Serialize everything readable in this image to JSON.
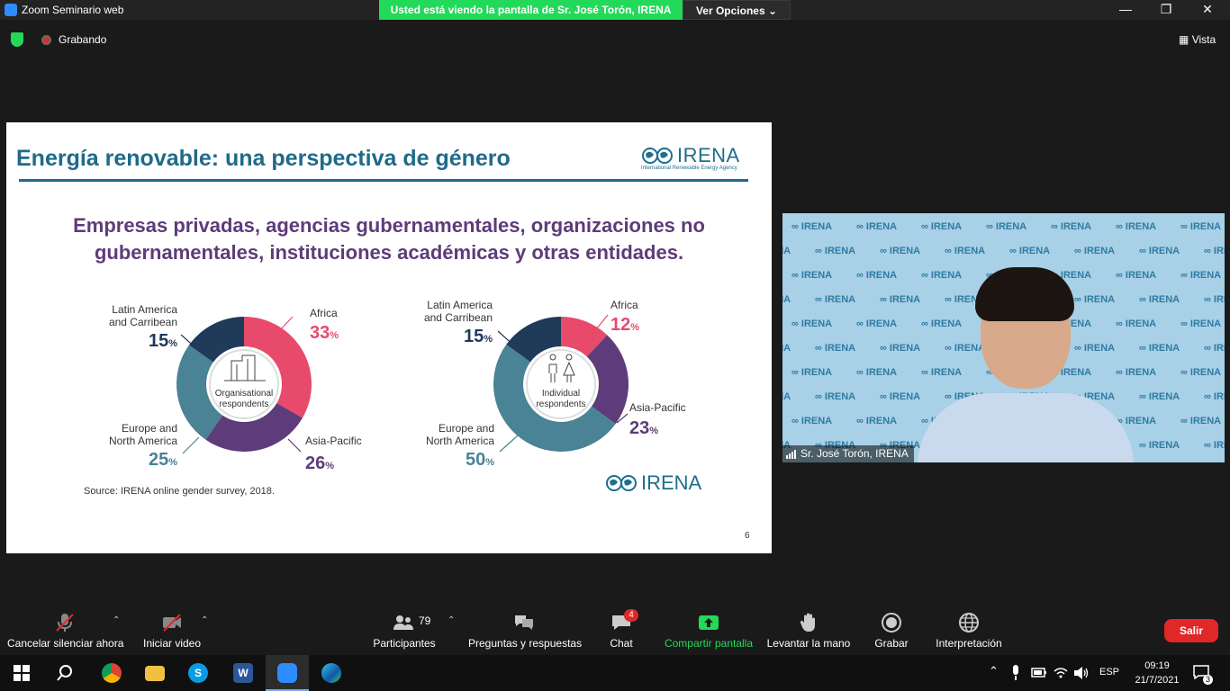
{
  "window": {
    "title": "Zoom Seminario web",
    "share_banner": "Usted está viendo la pantalla de Sr. José Torón, IRENA",
    "view_options": "Ver Opciones"
  },
  "status": {
    "recording": "Grabando",
    "view": "Vista"
  },
  "slide": {
    "title": "Energía renovable: una perspectiva de género",
    "logo_text": "IRENA",
    "logo_subtitle": "International Renewable Energy Agency",
    "subheading_line1": "Empresas privadas, agencias gubernamentales, organizaciones no",
    "subheading_line2": "gubernamentales, instituciones académicas y otras entidades.",
    "source": "Source: IRENA online gender survey, 2018.",
    "page_number": "6",
    "footer_logo": "IRENA"
  },
  "chart_data": [
    {
      "type": "pie",
      "center_label_line1": "Organisational",
      "center_label_line2": "respondents",
      "slices": [
        {
          "label": "Africa",
          "value": 33,
          "color": "#e84a6b"
        },
        {
          "label": "Asia-Pacific",
          "value": 26,
          "color": "#5e3b7a"
        },
        {
          "label_line1": "Europe and",
          "label_line2": "North America",
          "value": 25,
          "color": "#4a8296"
        },
        {
          "label_line1": "Latin America",
          "label_line2": "and Carribean",
          "value": 15,
          "color": "#203a5a"
        }
      ],
      "unit": "%"
    },
    {
      "type": "pie",
      "center_label_line1": "Individual",
      "center_label_line2": "respondents",
      "slices": [
        {
          "label": "Africa",
          "value": 12,
          "color": "#e84a6b"
        },
        {
          "label": "Asia-Pacific",
          "value": 23,
          "color": "#5e3b7a"
        },
        {
          "label_line1": "Europe and",
          "label_line2": "North America",
          "value": 50,
          "color": "#4a8296"
        },
        {
          "label_line1": "Latin America",
          "label_line2": "and Carribean",
          "value": 15,
          "color": "#203a5a"
        }
      ],
      "unit": "%"
    }
  ],
  "video": {
    "participant_name": "Sr. José Torón, IRENA",
    "backdrop_text": "IRENA"
  },
  "toolbar": {
    "mute_label": "Cancelar silenciar ahora",
    "video_label": "Iniciar video",
    "participants_label": "Participantes",
    "participants_count": "79",
    "qa_label": "Preguntas y respuestas",
    "chat_label": "Chat",
    "chat_badge": "4",
    "share_label": "Compartir pantalla",
    "raise_hand_label": "Levantar la mano",
    "record_label": "Grabar",
    "interpretation_label": "Interpretación",
    "leave_label": "Salir"
  },
  "taskbar": {
    "language": "ESP",
    "time": "09:19",
    "date": "21/7/2021",
    "notifications": "3"
  }
}
